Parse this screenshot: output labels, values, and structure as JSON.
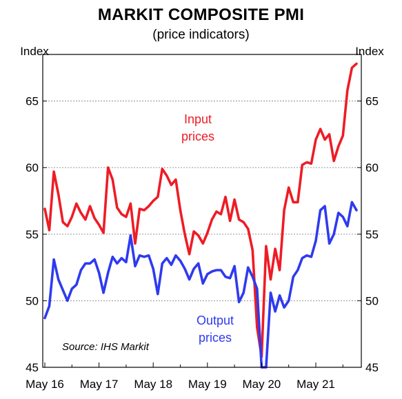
{
  "chart_data": {
    "type": "line",
    "title": "MARKIT COMPOSITE PMI",
    "subtitle": "(price indicators)",
    "ylabel_left": "Index",
    "ylabel_right": "Index",
    "source": "Source: IHS Markit",
    "ylim": [
      45,
      68.5
    ],
    "yticks": [
      45,
      50,
      55,
      60,
      65
    ],
    "grid": "horizontal-dotted",
    "x_ticks": [
      "May 16",
      "May 17",
      "May 18",
      "May 19",
      "May 20",
      "May 21"
    ],
    "x_start": "May 16",
    "colors": {
      "input": "#ee1c25",
      "output": "#2e3aef",
      "grid": "#888888"
    },
    "series": [
      {
        "name": "Input prices",
        "label_lines": [
          "Input",
          "prices"
        ],
        "color": "#ee1c25",
        "values": [
          56.9,
          55.3,
          59.7,
          58.0,
          55.9,
          55.6,
          56.3,
          57.3,
          56.6,
          56.1,
          57.1,
          56.2,
          55.7,
          55.1,
          60.0,
          59.1,
          57.0,
          56.5,
          56.3,
          57.3,
          54.3,
          56.9,
          56.8,
          57.1,
          57.5,
          57.8,
          59.9,
          59.4,
          58.7,
          59.1,
          56.8,
          55.0,
          53.5,
          55.2,
          54.9,
          54.3,
          55.1,
          56.1,
          56.7,
          56.5,
          57.8,
          56.0,
          57.6,
          56.1,
          55.9,
          55.4,
          53.8,
          48.0,
          45.8,
          54.1,
          51.6,
          53.9,
          52.3,
          56.8,
          58.5,
          57.4,
          57.4,
          60.2,
          60.4,
          60.3,
          62.1,
          62.9,
          62.1,
          62.5,
          60.5,
          61.6,
          62.4,
          65.8,
          67.5,
          67.8
        ]
      },
      {
        "name": "Output prices",
        "label_lines": [
          "Output",
          "prices"
        ],
        "color": "#2e3aef",
        "values": [
          48.7,
          49.6,
          53.1,
          51.6,
          50.8,
          50.0,
          50.9,
          51.2,
          52.3,
          52.8,
          52.8,
          53.1,
          52.1,
          50.6,
          52.1,
          53.3,
          52.8,
          53.2,
          52.9,
          54.9,
          52.6,
          53.4,
          53.3,
          53.4,
          52.4,
          50.5,
          52.8,
          53.2,
          52.7,
          53.4,
          53.0,
          52.4,
          51.6,
          52.4,
          52.8,
          51.3,
          52.0,
          52.2,
          52.3,
          52.3,
          51.8,
          51.7,
          52.6,
          49.9,
          50.6,
          52.5,
          51.8,
          50.9,
          45.0,
          45.0,
          50.6,
          49.2,
          50.4,
          49.5,
          50.0,
          51.8,
          52.3,
          53.2,
          53.4,
          53.3,
          54.5,
          56.8,
          57.1,
          54.3,
          55.0,
          56.6,
          56.3,
          55.6,
          57.4,
          56.8
        ]
      }
    ]
  }
}
